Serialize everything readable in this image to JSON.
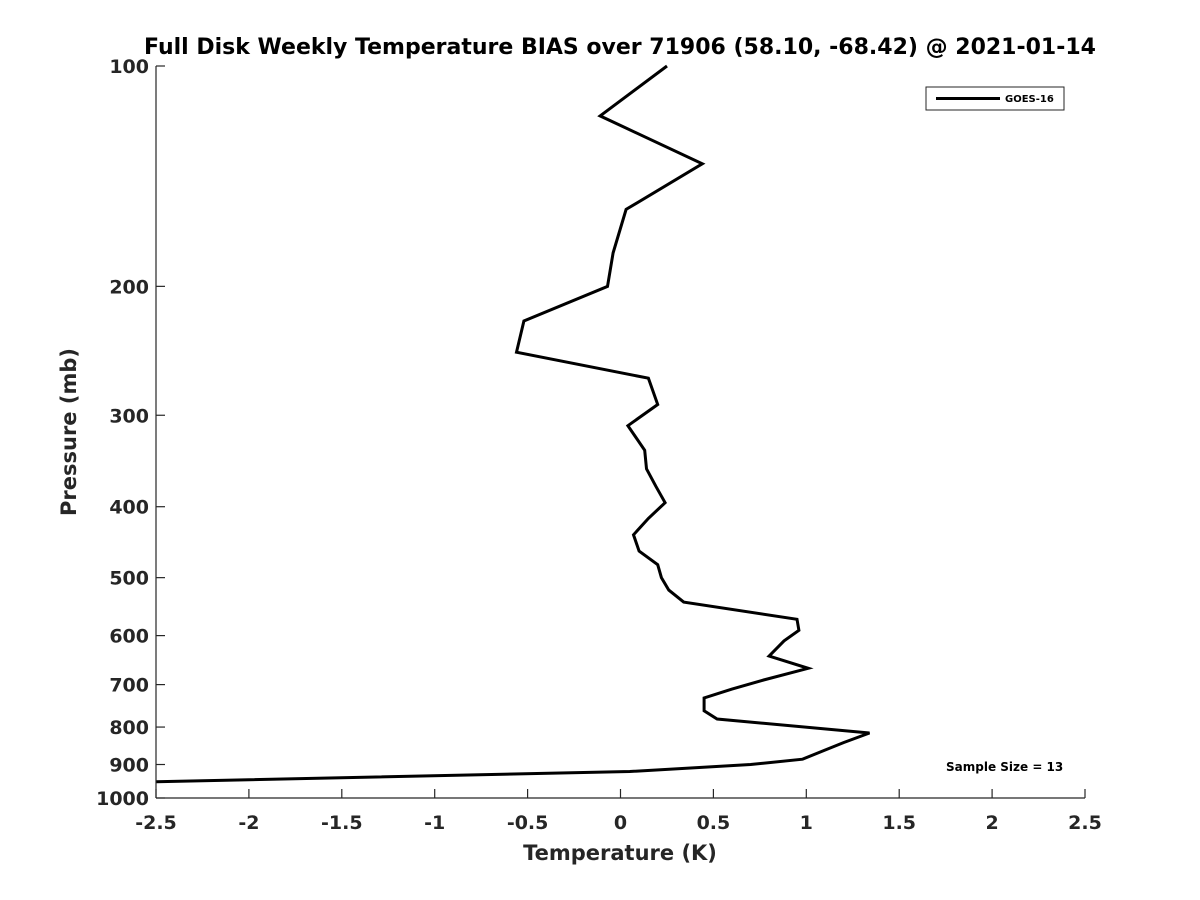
{
  "chart_data": {
    "type": "line",
    "title": "Full Disk Weekly Temperature BIAS over 71906 (58.10, -68.42) @ 2021-01-14",
    "xlabel": "Temperature (K)",
    "ylabel": "Pressure (mb)",
    "xlim": [
      -2.5,
      2.5
    ],
    "ylim": [
      100,
      1000
    ],
    "y_scale": "log",
    "y_reversed": true,
    "x_ticks": [
      -2.5,
      -2,
      -1.5,
      -1,
      -0.5,
      0,
      0.5,
      1,
      1.5,
      2,
      2.5
    ],
    "x_tick_labels": [
      "-2.5",
      "-2",
      "-1.5",
      "-1",
      "-0.5",
      "0",
      "0.5",
      "1",
      "1.5",
      "2",
      "2.5"
    ],
    "y_ticks": [
      100,
      200,
      300,
      400,
      500,
      600,
      700,
      800,
      900,
      1000
    ],
    "y_tick_labels": [
      "100",
      "200",
      "300",
      "400",
      "500",
      "600",
      "700",
      "800",
      "900",
      "1000"
    ],
    "grid": false,
    "legend_position": "top-right",
    "series": [
      {
        "name": "GOES-16",
        "color": "#000000",
        "x": [
          0.25,
          -0.11,
          0.44,
          0.03,
          -0.04,
          -0.07,
          -0.52,
          -0.56,
          0.15,
          0.2,
          0.04,
          0.13,
          0.14,
          0.19,
          0.24,
          0.15,
          0.07,
          0.1,
          0.2,
          0.22,
          0.26,
          0.34,
          0.95,
          0.96,
          0.88,
          0.8,
          1.01,
          0.77,
          0.6,
          0.45,
          0.45,
          0.52,
          1.34,
          1.2,
          1.1,
          0.98,
          0.7,
          0.05,
          -2.5
        ],
        "y": [
          100,
          117,
          136,
          157,
          180,
          200,
          223,
          246,
          267,
          290,
          310,
          335,
          355,
          375,
          395,
          415,
          437,
          460,
          480,
          500,
          520,
          540,
          570,
          590,
          610,
          640,
          665,
          690,
          710,
          730,
          760,
          780,
          815,
          840,
          860,
          885,
          900,
          920,
          950
        ]
      }
    ],
    "annotations": [
      {
        "text": "Sample Size = 13"
      }
    ]
  }
}
